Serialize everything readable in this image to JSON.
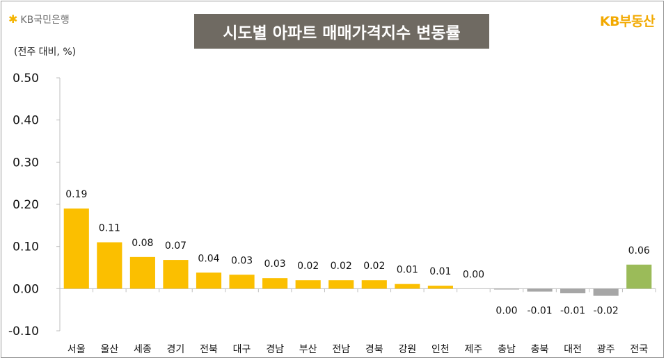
{
  "header": {
    "left_brand": "KB국민은행",
    "right_brand": "KB부동산",
    "title": "시도별 아파트 매매가격지수 변동률",
    "unit": "(전주 대비, %)"
  },
  "colors": {
    "bar_region": "#fbbf00",
    "bar_negative": "#a6a6a6",
    "bar_national": "#9bbb59",
    "title_bg": "#6f6a62",
    "brand": "#f2a900"
  },
  "chart_data": {
    "type": "bar",
    "title": "시도별 아파트 매매가격지수 변동률",
    "ylabel": "(전주 대비, %)",
    "xlabel": "",
    "ylim": [
      -0.1,
      0.5
    ],
    "yticks": [
      "0.50",
      "0.40",
      "0.30",
      "0.20",
      "0.10",
      "0.00",
      "-0.10"
    ],
    "ytick_values": [
      0.5,
      0.4,
      0.3,
      0.2,
      0.1,
      0.0,
      -0.1
    ],
    "grid": false,
    "categories": [
      "서울",
      "울산",
      "세종",
      "경기",
      "전북",
      "대구",
      "경남",
      "부산",
      "전남",
      "경북",
      "강원",
      "인천",
      "제주",
      "충남",
      "충북",
      "대전",
      "광주",
      "전국"
    ],
    "values": [
      0.19,
      0.11,
      0.075,
      0.068,
      0.038,
      0.033,
      0.025,
      0.02,
      0.02,
      0.02,
      0.011,
      0.007,
      0.0,
      -0.002,
      -0.007,
      -0.011,
      -0.017,
      0.057
    ],
    "value_labels": [
      "0.19",
      "0.11",
      "0.08",
      "0.07",
      "0.04",
      "0.03",
      "0.03",
      "0.02",
      "0.02",
      "0.02",
      "0.01",
      "0.01",
      "0.00",
      "0.00",
      "-0.01",
      "-0.01",
      "-0.02",
      "0.06"
    ]
  }
}
